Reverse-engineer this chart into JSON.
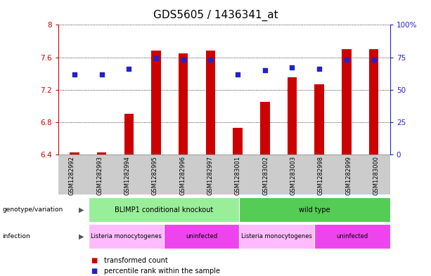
{
  "title": "GDS5605 / 1436341_at",
  "samples": [
    "GSM1282992",
    "GSM1282993",
    "GSM1282994",
    "GSM1282995",
    "GSM1282996",
    "GSM1282997",
    "GSM1283001",
    "GSM1283002",
    "GSM1283003",
    "GSM1282998",
    "GSM1282999",
    "GSM1283000"
  ],
  "transformed_counts": [
    6.43,
    6.43,
    6.9,
    7.68,
    7.65,
    7.68,
    6.73,
    7.05,
    7.35,
    7.27,
    7.7,
    7.7
  ],
  "percentile_ranks": [
    62,
    62,
    66,
    74,
    73,
    73,
    62,
    65,
    67,
    66,
    73,
    73
  ],
  "ylim_left": [
    6.4,
    8.0
  ],
  "ylim_right": [
    0,
    100
  ],
  "yticks_left": [
    6.4,
    6.8,
    7.2,
    7.6,
    8.0
  ],
  "ytick_labels_left": [
    "6.4",
    "6.8",
    "7.2",
    "7.6",
    "8"
  ],
  "yticks_right": [
    0,
    25,
    50,
    75,
    100
  ],
  "ytick_labels_right": [
    "0",
    "25",
    "50",
    "75",
    "100%"
  ],
  "bar_color": "#cc0000",
  "dot_color": "#2222cc",
  "bg_color": "#ffffff",
  "plot_bg_color": "#ffffff",
  "left_axis_color": "#cc0000",
  "right_axis_color": "#2222cc",
  "genotype_groups": [
    {
      "label": "BLIMP1 conditional knockout",
      "start": 0,
      "end": 6,
      "color": "#99ee99"
    },
    {
      "label": "wild type",
      "start": 6,
      "end": 12,
      "color": "#55cc55"
    }
  ],
  "infection_groups": [
    {
      "label": "Listeria monocytogenes",
      "start": 0,
      "end": 3,
      "color": "#ffbbff"
    },
    {
      "label": "uninfected",
      "start": 3,
      "end": 6,
      "color": "#ee44ee"
    },
    {
      "label": "Listeria monocytogenes",
      "start": 6,
      "end": 9,
      "color": "#ffbbff"
    },
    {
      "label": "uninfected",
      "start": 9,
      "end": 12,
      "color": "#ee44ee"
    }
  ],
  "legend_items": [
    {
      "label": "transformed count",
      "color": "#cc0000"
    },
    {
      "label": "percentile rank within the sample",
      "color": "#2222cc"
    }
  ],
  "title_fontsize": 11,
  "tick_fontsize": 7.5,
  "bar_width": 0.35
}
